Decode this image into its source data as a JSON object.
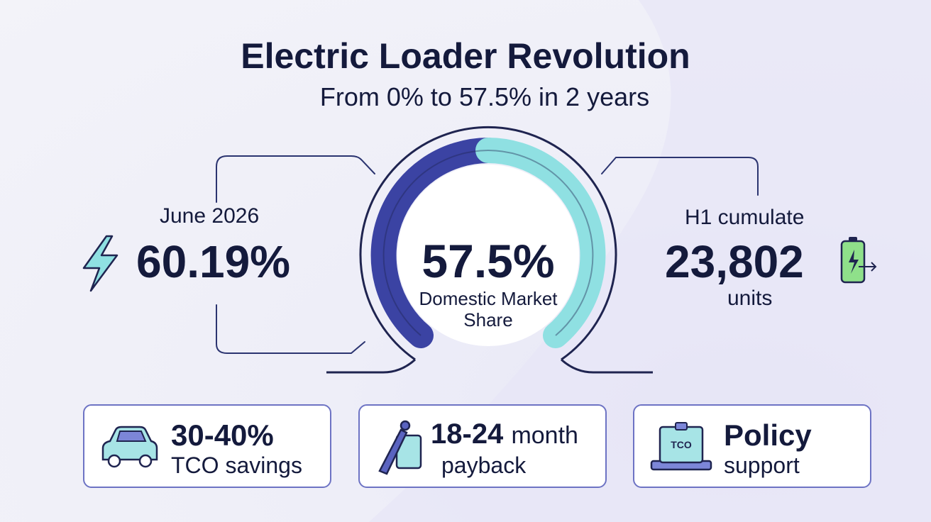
{
  "header": {
    "title": "Electric Loader Revolution",
    "subtitle": "From 0% to 57.5% in 2 years"
  },
  "left_stat": {
    "label": "June 2026",
    "value": "60.19%"
  },
  "gauge": {
    "value": "57.5%",
    "label": "Domestic Market Share"
  },
  "right_stat": {
    "label": "H1 cumulate",
    "value": "23,802",
    "unit": "units"
  },
  "cards": [
    {
      "value": "30-40%",
      "text": "TCO savings"
    },
    {
      "value": "18-24",
      "unit": "month",
      "text": "payback"
    },
    {
      "value": "Policy",
      "text": "support",
      "icon_label": "TCO"
    }
  ]
}
